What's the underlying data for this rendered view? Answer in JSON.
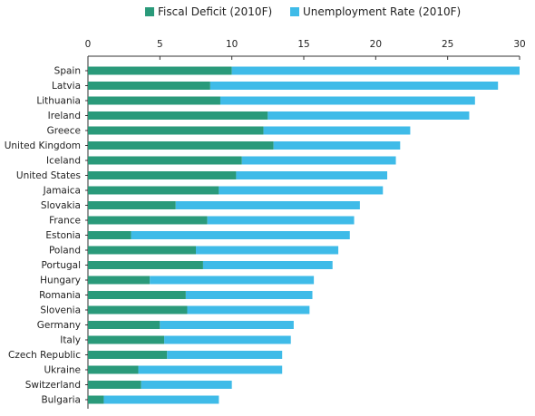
{
  "colors": {
    "deficit": "#2a9a7a",
    "unemployment": "#3fbbe8",
    "axis": "#333333"
  },
  "chart_data": {
    "type": "bar",
    "orientation": "horizontal",
    "stacked": true,
    "title": "",
    "xlabel": "",
    "ylabel": "",
    "xlim": [
      0,
      30
    ],
    "xticks": [
      "0",
      "5",
      "10",
      "15",
      "20",
      "25",
      "30"
    ],
    "legend_position": "top",
    "grid": false,
    "categories": [
      "Spain",
      "Latvia",
      "Lithuania",
      "Ireland",
      "Greece",
      "United Kingdom",
      "Iceland",
      "United States",
      "Jamaica",
      "Slovakia",
      "France",
      "Estonia",
      "Poland",
      "Portugal",
      "Hungary",
      "Romania",
      "Slovenia",
      "Germany",
      "Italy",
      "Czech Republic",
      "Ukraine",
      "Switzerland",
      "Bulgaria"
    ],
    "series": [
      {
        "name": "Fiscal Deficit (2010F)",
        "values": [
          10.0,
          8.5,
          9.2,
          12.5,
          12.2,
          12.9,
          10.7,
          10.3,
          9.1,
          6.1,
          8.3,
          3.0,
          7.5,
          8.0,
          4.3,
          6.8,
          6.9,
          5.0,
          5.3,
          5.5,
          3.5,
          3.7,
          1.1
        ]
      },
      {
        "name": "Unemployment Rate (2010F)",
        "values": [
          20.0,
          20.0,
          17.7,
          14.0,
          10.2,
          8.8,
          10.7,
          10.5,
          11.4,
          12.8,
          10.2,
          15.2,
          9.9,
          9.0,
          11.4,
          8.8,
          8.5,
          9.3,
          8.8,
          8.0,
          10.0,
          6.3,
          8.0
        ]
      }
    ]
  }
}
